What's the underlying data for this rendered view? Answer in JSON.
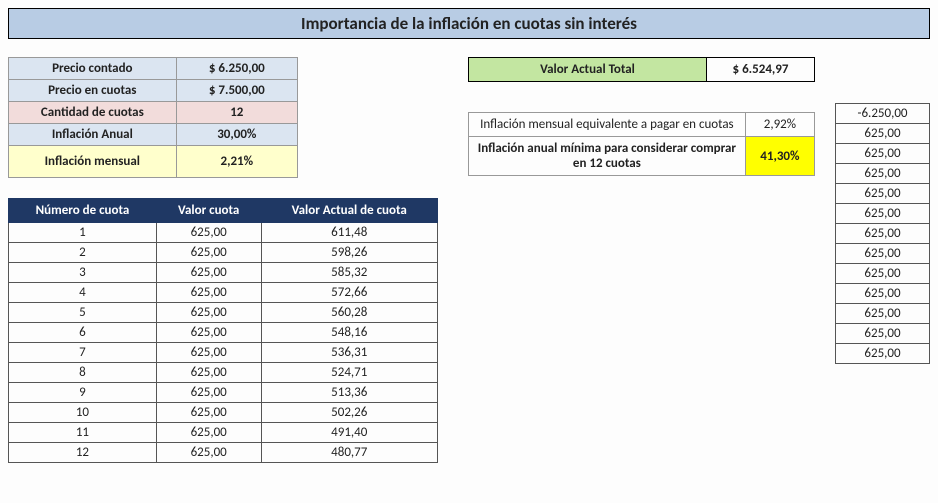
{
  "title": "Importancia de la inflación en cuotas sin interés",
  "inputs": {
    "precio_contado_label": "Precio contado",
    "precio_contado_val": "$ 6.250,00",
    "precio_cuotas_label": "Precio en cuotas",
    "precio_cuotas_val": "$ 7.500,00",
    "cantidad_label": "Cantidad de cuotas",
    "cantidad_val": "12",
    "infl_anual_label": "Inflación Anual",
    "infl_anual_val": "30,00%",
    "infl_mensual_label": "Inflación mensual",
    "infl_mensual_val": "2,21%"
  },
  "valor_actual_total": {
    "label": "Valor Actual Total",
    "value": "$ 6.524,97"
  },
  "derived": {
    "infl_equiv_label": "Inflación mensual equivalente a pagar en cuotas",
    "infl_equiv_val": "2,92%",
    "infl_min_label": "Inflación anual mínima para considerar comprar en 12 cuotas",
    "infl_min_val": "41,30%"
  },
  "quota_headers": {
    "num": "Número de cuota",
    "valor": "Valor cuota",
    "vac": "Valor Actual de cuota"
  },
  "quotas": [
    {
      "n": "1",
      "v": "625,00",
      "pv": "611,48"
    },
    {
      "n": "2",
      "v": "625,00",
      "pv": "598,26"
    },
    {
      "n": "3",
      "v": "625,00",
      "pv": "585,32"
    },
    {
      "n": "4",
      "v": "625,00",
      "pv": "572,66"
    },
    {
      "n": "5",
      "v": "625,00",
      "pv": "560,28"
    },
    {
      "n": "6",
      "v": "625,00",
      "pv": "548,16"
    },
    {
      "n": "7",
      "v": "625,00",
      "pv": "536,31"
    },
    {
      "n": "8",
      "v": "625,00",
      "pv": "524,71"
    },
    {
      "n": "9",
      "v": "625,00",
      "pv": "513,36"
    },
    {
      "n": "10",
      "v": "625,00",
      "pv": "502,26"
    },
    {
      "n": "11",
      "v": "625,00",
      "pv": "491,40"
    },
    {
      "n": "12",
      "v": "625,00",
      "pv": "480,77"
    }
  ],
  "cashflow": [
    "-6.250,00",
    "625,00",
    "625,00",
    "625,00",
    "625,00",
    "625,00",
    "625,00",
    "625,00",
    "625,00",
    "625,00",
    "625,00",
    "625,00",
    "625,00"
  ],
  "colors": {
    "title_bg": "#b8cce4",
    "header_bg": "#1f3864",
    "input_blue": "#dbe5f1",
    "input_salmon": "#f2dcdb",
    "input_yellow": "#ffffcc",
    "total_green": "#c3e6a1",
    "highlight_yellow": "#ffff00"
  }
}
